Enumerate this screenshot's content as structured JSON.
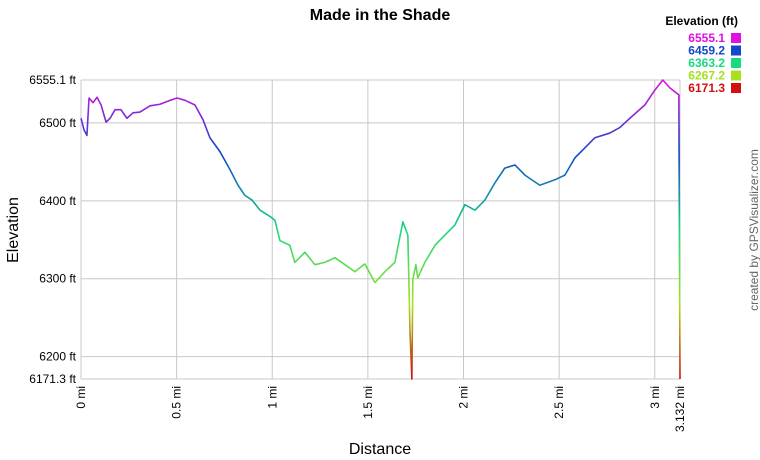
{
  "chart_data": {
    "type": "line",
    "title": "Made in the Shade",
    "x_label": "Distance",
    "y_label": "Elevation",
    "annotation": "created by GPSVisualizer.com",
    "legend": {
      "title": "Elevation (ft)",
      "items": [
        {
          "value": 6555.1,
          "color": "#e010e0"
        },
        {
          "value": 6459.2,
          "color": "#1048c8"
        },
        {
          "value": 6363.2,
          "color": "#18d880"
        },
        {
          "value": 6267.2,
          "color": "#a8e020"
        },
        {
          "value": 6171.3,
          "color": "#d01010"
        }
      ]
    },
    "x": [
      0,
      0.016,
      0.031,
      0.042,
      0.063,
      0.084,
      0.105,
      0.131,
      0.152,
      0.178,
      0.209,
      0.24,
      0.272,
      0.308,
      0.361,
      0.413,
      0.465,
      0.502,
      0.544,
      0.596,
      0.638,
      0.674,
      0.727,
      0.779,
      0.821,
      0.857,
      0.894,
      0.936,
      0.988,
      1.014,
      1.04,
      1.092,
      1.118,
      1.171,
      1.223,
      1.275,
      1.328,
      1.38,
      1.432,
      1.484,
      1.537,
      1.589,
      1.641,
      1.683,
      1.709,
      1.72,
      1.73,
      1.735,
      1.751,
      1.761,
      1.798,
      1.851,
      1.903,
      1.955,
      2.007,
      2.06,
      2.112,
      2.164,
      2.216,
      2.269,
      2.321,
      2.399,
      2.478,
      2.53,
      2.582,
      2.635,
      2.687,
      2.765,
      2.817,
      2.87,
      2.948,
      3.0,
      3.042,
      3.079,
      3.126,
      3.132
    ],
    "values": [
      6506,
      6491,
      6484,
      6532,
      6526,
      6533,
      6523,
      6501,
      6506,
      6517,
      6517,
      6506,
      6513,
      6514,
      6522,
      6524,
      6529,
      6532,
      6529,
      6523,
      6504,
      6481,
      6463,
      6440,
      6420,
      6407,
      6401,
      6388,
      6380,
      6375,
      6349,
      6343,
      6321,
      6334,
      6318,
      6321,
      6327,
      6318,
      6309,
      6319,
      6295,
      6309,
      6321,
      6373,
      6356,
      6234,
      6171.3,
      6299,
      6318,
      6301,
      6321,
      6343,
      6356,
      6369,
      6395,
      6388,
      6401,
      6423,
      6442,
      6446,
      6433,
      6420,
      6427,
      6433,
      6455,
      6468,
      6481,
      6487,
      6494,
      6506,
      6523,
      6542,
      6555.1,
      6545,
      6536,
      6171.3
    ],
    "xlim": [
      0,
      3.132
    ],
    "ylim": [
      6171.3,
      6555.1
    ],
    "xticks": [
      {
        "value": 0,
        "label": "0 mi"
      },
      {
        "value": 0.5,
        "label": "0.5 mi"
      },
      {
        "value": 1,
        "label": "1 mi"
      },
      {
        "value": 1.5,
        "label": "1.5 mi"
      },
      {
        "value": 2,
        "label": "2 mi"
      },
      {
        "value": 2.5,
        "label": "2.5 mi"
      },
      {
        "value": 3,
        "label": "3 mi"
      },
      {
        "value": 3.132,
        "label": "3.132 mi"
      }
    ],
    "yticks": [
      {
        "value": 6171.3,
        "label": "6171.3 ft"
      },
      {
        "value": 6200,
        "label": "6200 ft"
      },
      {
        "value": 6300,
        "label": "6300 ft"
      },
      {
        "value": 6400,
        "label": "6400 ft"
      },
      {
        "value": 6500,
        "label": "6500 ft"
      },
      {
        "value": 6555.1,
        "label": "6555.1 ft"
      }
    ],
    "grid": true
  }
}
